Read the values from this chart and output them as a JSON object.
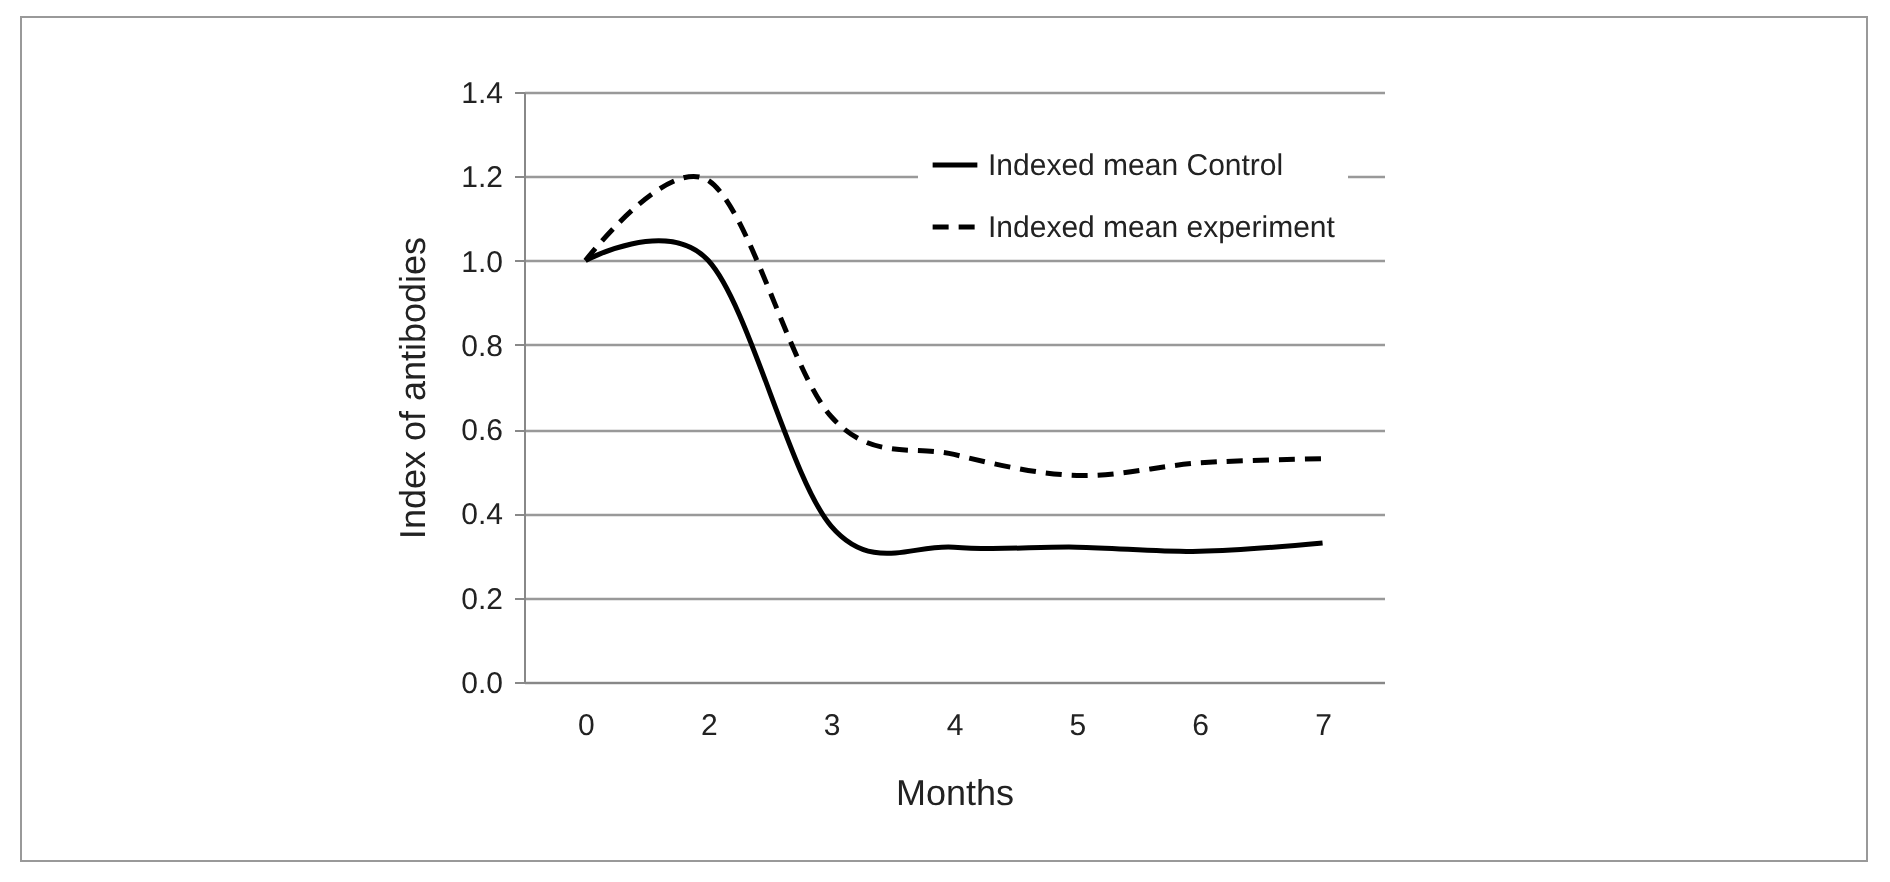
{
  "chart_data": {
    "type": "line",
    "xlabel": "Months",
    "ylabel": "Index of antibodies",
    "categories": [
      "0",
      "2",
      "3",
      "4",
      "5",
      "6",
      "7"
    ],
    "series": [
      {
        "name": "Indexed mean Control",
        "color": "#000000",
        "line_style": "solid",
        "values": [
          1.0,
          1.0,
          0.37,
          0.32,
          0.32,
          0.31,
          0.33
        ]
      },
      {
        "name": "Indexed mean experiment",
        "color": "#000000",
        "line_style": "dashed",
        "values": [
          1.0,
          1.19,
          0.63,
          0.54,
          0.49,
          0.52,
          0.53
        ]
      }
    ],
    "ylim": [
      0,
      1.4
    ],
    "yticks": [
      {
        "value": 0,
        "label": "0.0"
      },
      0.2,
      0.4,
      0.6,
      0.8,
      {
        "value": 1,
        "label": "1.0"
      },
      1.2,
      1.4
    ],
    "grid": "y",
    "legend": "top right",
    "marker": "none"
  }
}
